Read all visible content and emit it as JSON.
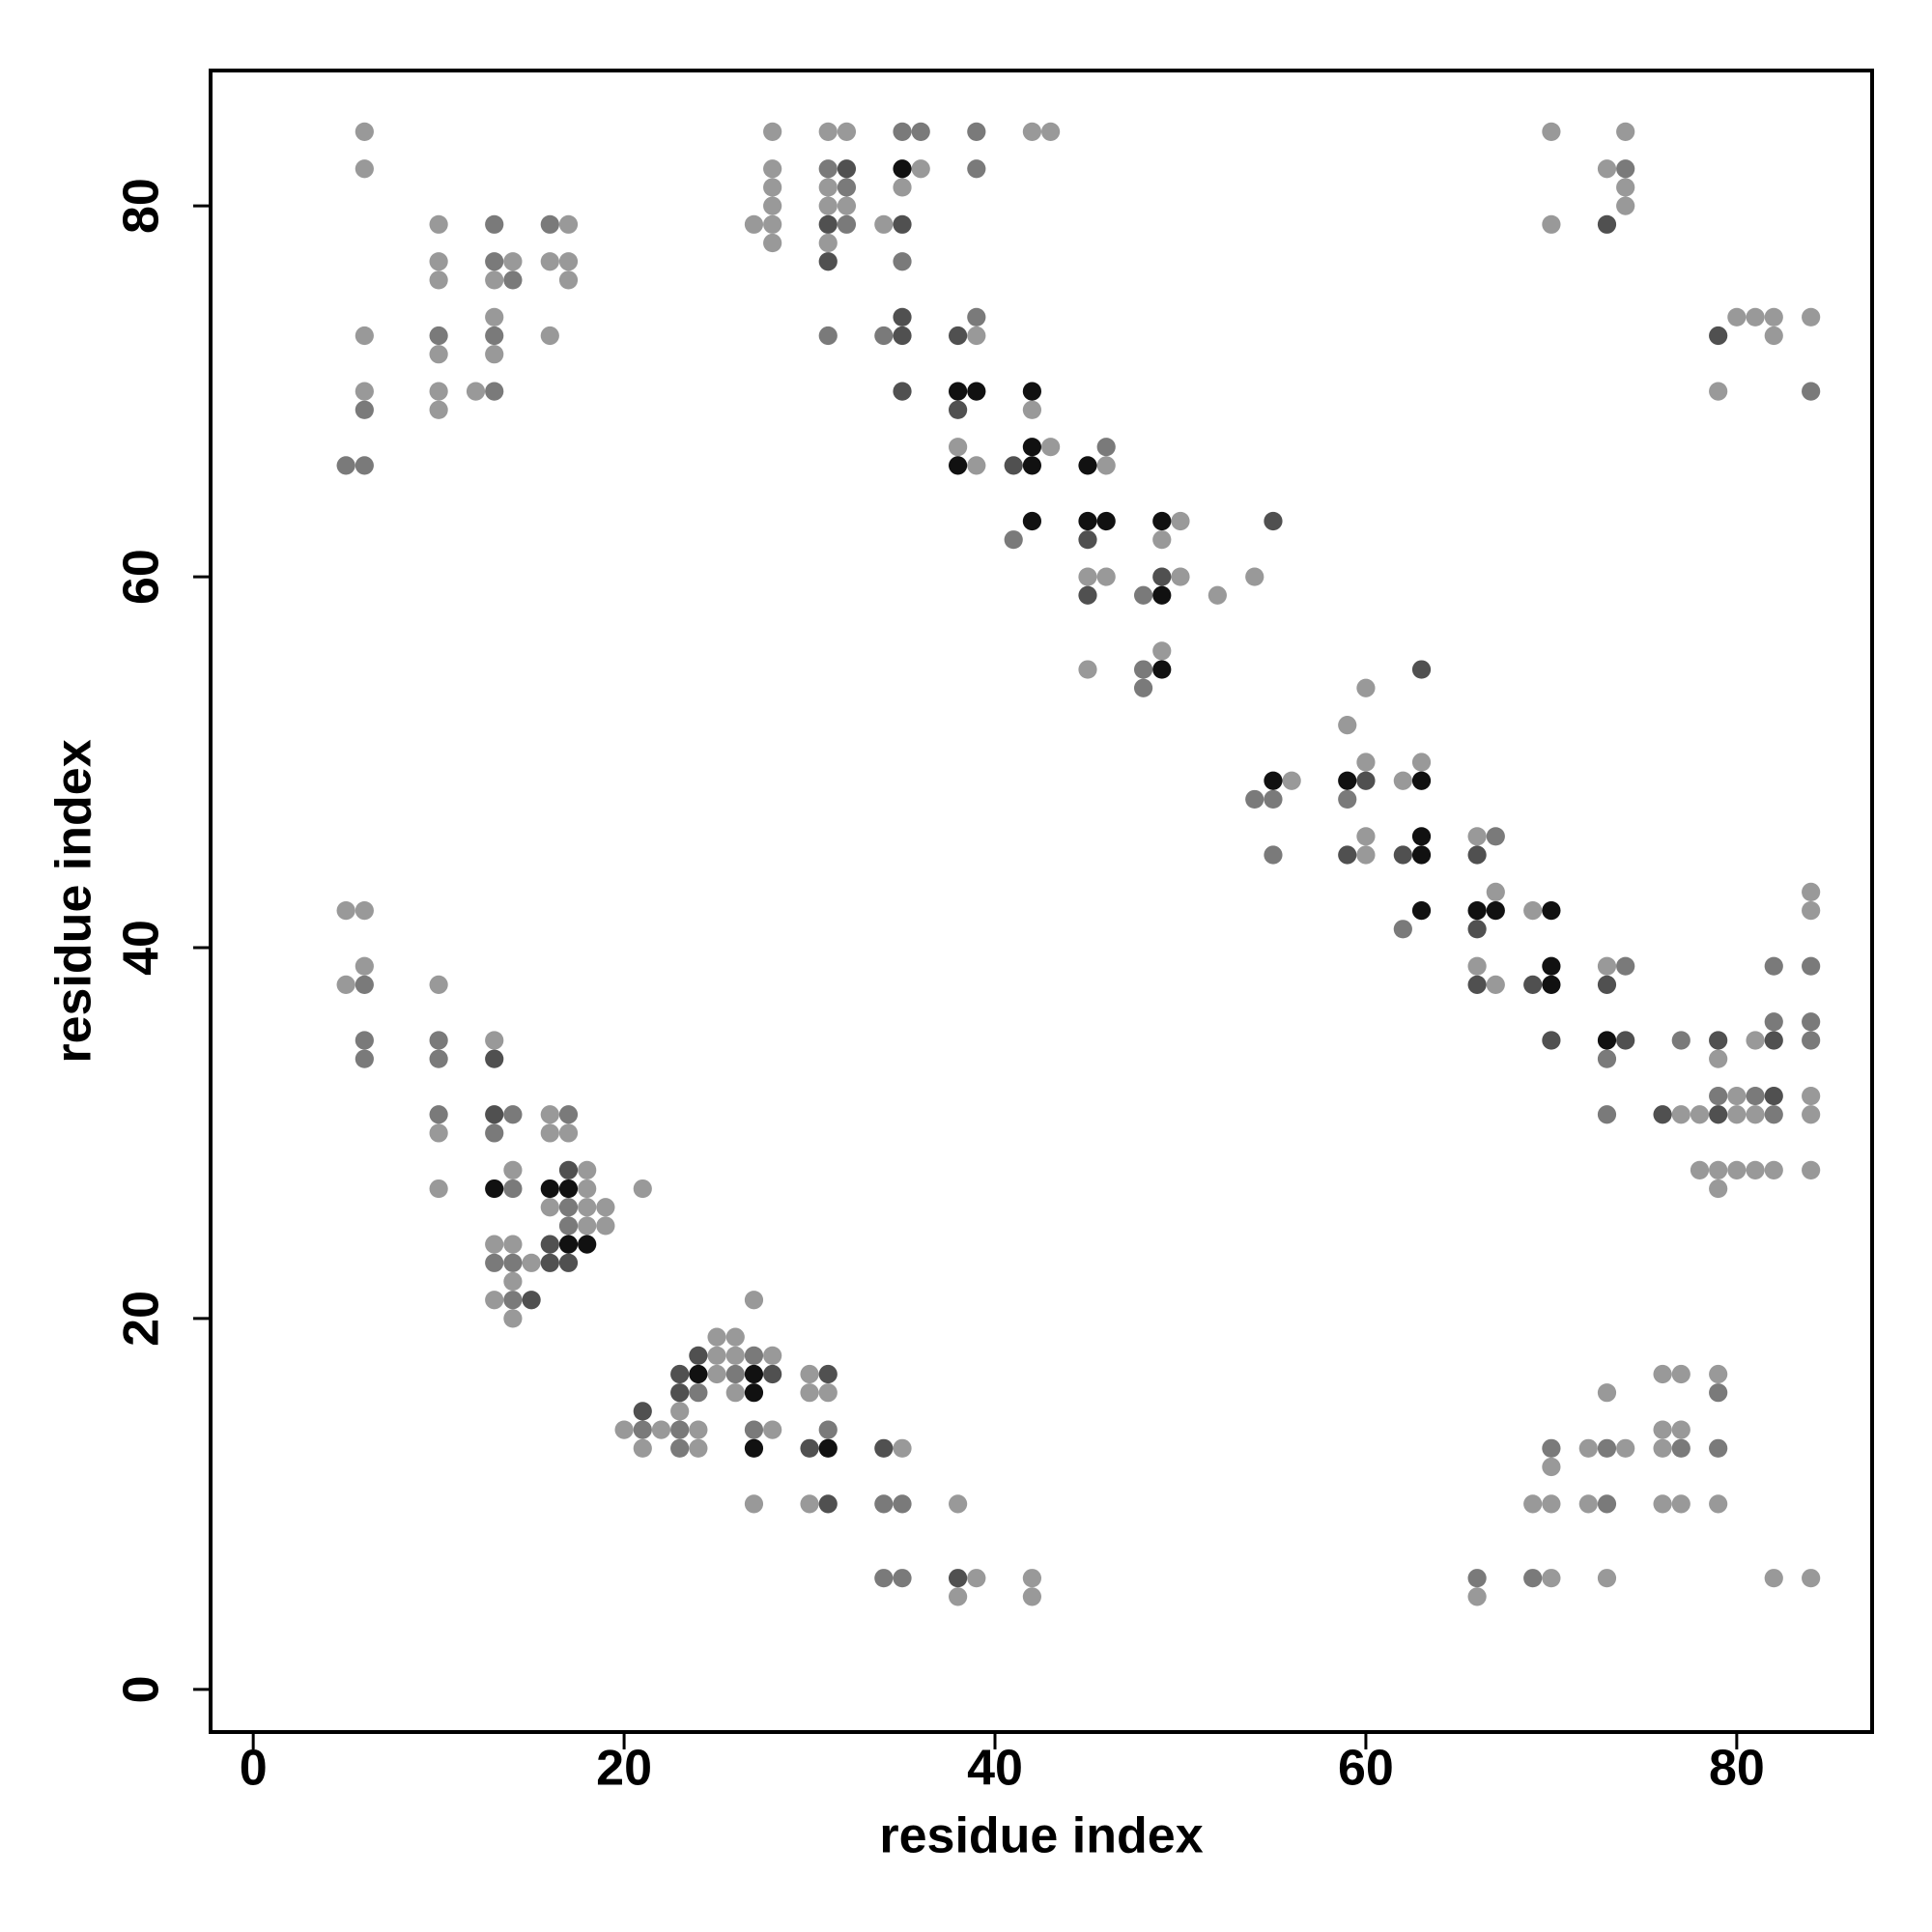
{
  "chart_data": {
    "type": "scatter",
    "xlabel": "residue index",
    "ylabel": "residue index",
    "xlim": [
      -2.3,
      87.3
    ],
    "ylim": [
      -2.3,
      87.3
    ],
    "xticks": [
      0,
      20,
      40,
      60,
      80
    ],
    "yticks": [
      0,
      20,
      40,
      60,
      80
    ],
    "series": [
      {
        "color": "#999999",
        "x": [
          6,
          6,
          6,
          6,
          10,
          10,
          10,
          10,
          10,
          10,
          12,
          13,
          13,
          13,
          14,
          16,
          16,
          17,
          17,
          17,
          27,
          28,
          28,
          28,
          28,
          28,
          28,
          31,
          31,
          31,
          31,
          32,
          32,
          34,
          35,
          36,
          39,
          38,
          39,
          42,
          43,
          42,
          43,
          46,
          45,
          46,
          45,
          50,
          49,
          50,
          52,
          49,
          54,
          56,
          59,
          60,
          60,
          60,
          60,
          62,
          63,
          66,
          67,
          66,
          67,
          69,
          73,
          70,
          70,
          73,
          74,
          74,
          74,
          79,
          80,
          81,
          82,
          82,
          84,
          79,
          81,
          84,
          84,
          77,
          78,
          80,
          80,
          81,
          84,
          84,
          78,
          79,
          80,
          81,
          82,
          84,
          79,
          5,
          6,
          6,
          5,
          10,
          13,
          10,
          10,
          16,
          16,
          17,
          14,
          18,
          16,
          18,
          18,
          19,
          18,
          19,
          21,
          13,
          14,
          15,
          14,
          13,
          14,
          20,
          22,
          21,
          23,
          24,
          24,
          25,
          26,
          25,
          26,
          28,
          25,
          26,
          27,
          28,
          27,
          30,
          30,
          31,
          30,
          35,
          38,
          39,
          38,
          42,
          42,
          66,
          69,
          70,
          70,
          70,
          72,
          74,
          73,
          72,
          73,
          76,
          77,
          76,
          77,
          76,
          76,
          77,
          79,
          79,
          82,
          84
        ],
        "values": [
          84,
          82,
          73,
          70,
          79,
          77,
          76,
          72,
          70,
          69,
          70,
          76,
          74,
          72,
          77,
          77,
          73,
          79,
          77,
          76,
          79,
          84,
          82,
          81,
          80,
          79,
          78,
          84,
          81,
          80,
          78,
          84,
          80,
          79,
          81,
          82,
          73,
          67,
          66,
          84,
          84,
          69,
          67,
          66,
          60,
          60,
          55,
          63,
          62,
          60,
          59,
          56,
          60,
          49,
          52,
          54,
          50,
          46,
          45,
          49,
          50,
          46,
          43,
          39,
          38,
          42,
          39,
          84,
          79,
          82,
          84,
          81,
          80,
          70,
          74,
          74,
          74,
          73,
          74,
          34,
          35,
          43,
          42,
          31,
          31,
          32,
          31,
          31,
          32,
          31,
          28,
          28,
          28,
          28,
          28,
          28,
          27,
          42,
          42,
          39,
          38,
          38,
          35,
          30,
          27,
          31,
          30,
          30,
          28,
          28,
          26,
          27,
          26,
          26,
          25,
          25,
          27,
          24,
          24,
          23,
          22,
          21,
          20,
          14,
          14,
          13,
          15,
          14,
          13,
          19,
          19,
          18,
          18,
          18,
          17,
          16,
          21,
          14,
          10,
          17,
          16,
          16,
          10,
          13,
          10,
          6,
          5,
          6,
          5,
          5,
          10,
          10,
          6,
          12,
          13,
          13,
          16,
          10,
          6,
          17,
          17,
          14,
          14,
          13,
          10,
          10,
          17,
          10,
          6,
          6
        ]
      },
      {
        "color": "#7a7a7a",
        "x": [
          6,
          5,
          6,
          10,
          13,
          13,
          13,
          13,
          14,
          16,
          31,
          31,
          32,
          32,
          34,
          35,
          35,
          36,
          39,
          39,
          39,
          41,
          46,
          48,
          48,
          48,
          54,
          55,
          55,
          59,
          62,
          67,
          74,
          73,
          73,
          74,
          84,
          77,
          82,
          82,
          84,
          84,
          84,
          79,
          81,
          82,
          6,
          6,
          6,
          10,
          10,
          10,
          14,
          13,
          17,
          14,
          17,
          17,
          13,
          14,
          14,
          21,
          24,
          23,
          23,
          27,
          26,
          27,
          31,
          34,
          35,
          34,
          35,
          66,
          69,
          70,
          73,
          73,
          77,
          79,
          79
        ],
        "values": [
          69,
          66,
          66,
          73,
          79,
          77,
          73,
          70,
          76,
          79,
          82,
          73,
          81,
          79,
          73,
          84,
          77,
          84,
          84,
          82,
          74,
          62,
          67,
          59,
          55,
          54,
          48,
          48,
          45,
          48,
          41,
          46,
          39,
          34,
          31,
          82,
          70,
          35,
          36,
          39,
          39,
          36,
          35,
          32,
          32,
          31,
          38,
          35,
          34,
          35,
          34,
          31,
          31,
          30,
          31,
          27,
          26,
          25,
          23,
          23,
          21,
          14,
          16,
          14,
          13,
          18,
          17,
          14,
          14,
          10,
          10,
          6,
          6,
          6,
          6,
          13,
          13,
          10,
          13,
          16,
          13
        ]
      },
      {
        "color": "#505050",
        "x": [
          31,
          31,
          32,
          35,
          35,
          35,
          35,
          38,
          38,
          41,
          45,
          45,
          55,
          49,
          60,
          59,
          63,
          62,
          66,
          66,
          66,
          69,
          70,
          73,
          74,
          73,
          79,
          79,
          82,
          76,
          79,
          82,
          13,
          13,
          17,
          16,
          16,
          17,
          15,
          21,
          23,
          24,
          23,
          28,
          31,
          30,
          31,
          34,
          38
        ],
        "values": [
          79,
          77,
          82,
          79,
          74,
          73,
          70,
          73,
          69,
          66,
          62,
          59,
          63,
          60,
          49,
          45,
          55,
          45,
          45,
          41,
          38,
          38,
          35,
          38,
          35,
          79,
          73,
          35,
          35,
          31,
          31,
          32,
          34,
          31,
          28,
          24,
          23,
          23,
          21,
          15,
          17,
          18,
          16,
          17,
          17,
          13,
          10,
          13,
          6
        ]
      },
      {
        "color": "#111111",
        "x": [
          35,
          38,
          39,
          38,
          42,
          42,
          42,
          42,
          45,
          45,
          46,
          49,
          49,
          49,
          55,
          59,
          63,
          63,
          63,
          63,
          66,
          67,
          70,
          70,
          70,
          73,
          13,
          16,
          17,
          17,
          18,
          24,
          27,
          27,
          27,
          31
        ],
        "values": [
          82,
          70,
          70,
          66,
          70,
          67,
          66,
          63,
          66,
          63,
          63,
          63,
          59,
          55,
          49,
          49,
          49,
          46,
          45,
          42,
          42,
          42,
          42,
          39,
          38,
          35,
          27,
          27,
          27,
          24,
          24,
          17,
          17,
          16,
          13,
          13
        ]
      }
    ]
  }
}
